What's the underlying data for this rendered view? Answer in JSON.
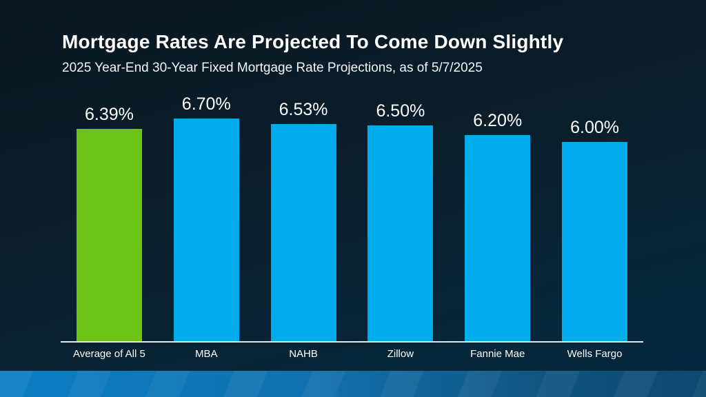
{
  "slide": {
    "title": "Mortgage Rates Are Projected To Come Down Slightly",
    "subtitle": "2025 Year-End 30-Year Fixed Mortgage Rate Projections, as of 5/7/2025"
  },
  "chart_data": {
    "type": "bar",
    "title": "Mortgage Rates Are Projected To Come Down Slightly",
    "subtitle": "2025 Year-End 30-Year Fixed Mortgage Rate Projections, as of 5/7/2025",
    "categories": [
      "Average of All 5",
      "MBA",
      "NAHB",
      "Zillow",
      "Fannie Mae",
      "Wells Fargo"
    ],
    "values": [
      6.39,
      6.7,
      6.53,
      6.5,
      6.2,
      6.0
    ],
    "value_labels": [
      "6.39%",
      "6.70%",
      "6.53%",
      "6.50%",
      "6.20%",
      "6.00%"
    ],
    "xlabel": "",
    "ylabel": "",
    "ylim": [
      0,
      7
    ],
    "grid": false,
    "legend": "none",
    "highlight_index": 0,
    "bar_colors": [
      "#6CC417",
      "#00ACEC",
      "#00ACEC",
      "#00ACEC",
      "#00ACEC",
      "#00ACEC"
    ]
  },
  "colors": {
    "background_top": "#091822",
    "background_bottom": "#042A41",
    "bar_green": "#6CC417",
    "bar_blue": "#00ACEC",
    "baseline": "#E6EAED",
    "text": "#FFFFFF",
    "footer_left": "#0B7EC5",
    "footer_right": "#0D486F"
  }
}
